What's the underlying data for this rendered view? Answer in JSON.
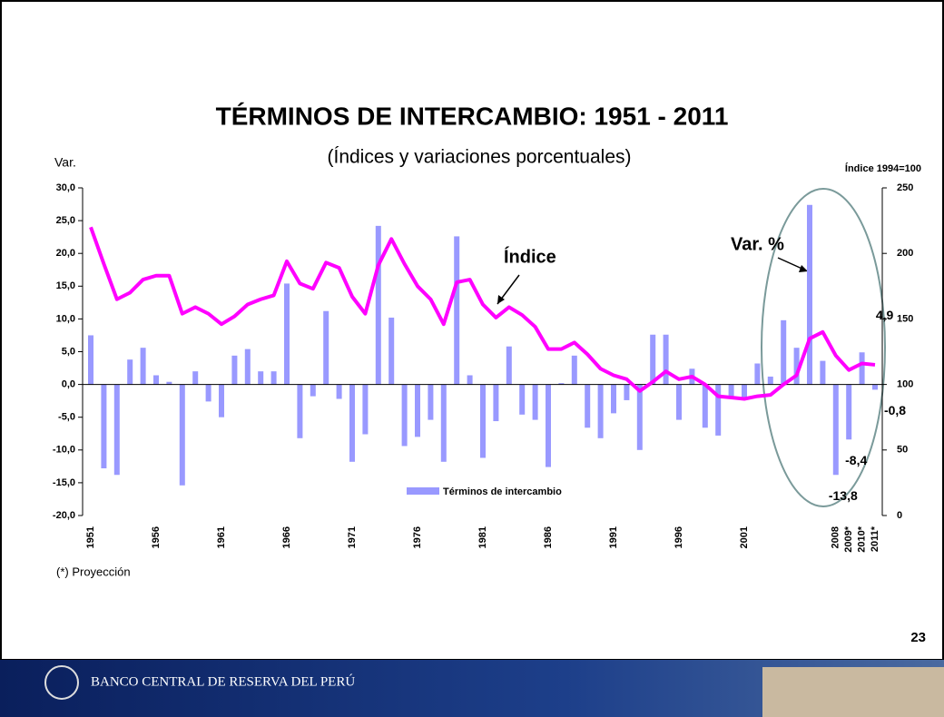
{
  "page": {
    "number": "23",
    "footer": "BANCO CENTRAL DE RESERVA DEL PERÚ",
    "note": "(*) Proyección"
  },
  "chart_data": {
    "type": "bar_line",
    "title": "TÉRMINOS DE INTERCAMBIO: 1951 -  2011",
    "subtitle": "(Índices y variaciones porcentuales)",
    "y_label": "Var.",
    "y2_label": "Índice 1994=100",
    "annotations": [
      "Var. %"
    ],
    "categories": [
      "1951",
      null,
      null,
      null,
      null,
      "1956",
      null,
      null,
      null,
      null,
      "1961",
      null,
      null,
      null,
      null,
      "1966",
      null,
      null,
      null,
      null,
      "1971",
      null,
      null,
      null,
      null,
      "1976",
      null,
      null,
      null,
      null,
      "1981",
      null,
      null,
      null,
      null,
      "1986",
      null,
      null,
      null,
      null,
      "1991",
      null,
      null,
      null,
      null,
      "1996",
      null,
      null,
      null,
      null,
      "2001",
      null,
      null,
      null,
      null,
      null,
      null,
      "2008",
      "2009*",
      "2010*",
      "2011*"
    ],
    "series": [
      {
        "name": "Términos de intercambio",
        "type": "bar",
        "color": "#9999ff",
        "values": [
          7.5,
          -12.8,
          -13.8,
          3.8,
          5.6,
          1.4,
          0.4,
          -15.4,
          2.0,
          -2.6,
          -5.0,
          4.4,
          5.4,
          2.0,
          2.0,
          15.4,
          -8.2,
          -1.8,
          11.2,
          -2.2,
          -11.8,
          -7.6,
          24.2,
          10.2,
          -9.4,
          -8.0,
          -5.4,
          -11.8,
          22.6,
          1.4,
          -11.2,
          -5.6,
          5.8,
          -4.6,
          -5.4,
          -12.6,
          0.2,
          4.4,
          -6.6,
          -8.2,
          -4.4,
          -2.4,
          -10.0,
          7.6,
          7.6,
          -5.4,
          2.4,
          -6.6,
          -7.8,
          -1.8,
          -2.2,
          3.2,
          1.2,
          9.8,
          5.6,
          27.4,
          3.6,
          -13.8,
          -8.4,
          4.9,
          -0.8
        ],
        "value_labels": [
          null,
          null,
          null,
          null,
          null,
          null,
          null,
          null,
          null,
          null,
          null,
          null,
          null,
          null,
          null,
          null,
          null,
          null,
          null,
          null,
          null,
          null,
          null,
          null,
          null,
          null,
          null,
          null,
          null,
          null,
          null,
          null,
          null,
          null,
          null,
          null,
          null,
          null,
          null,
          null,
          null,
          null,
          null,
          null,
          null,
          null,
          null,
          null,
          null,
          null,
          null,
          null,
          null,
          null,
          null,
          null,
          null,
          "-13,8",
          "-8,4",
          "4,9",
          "-0,8"
        ]
      },
      {
        "name": "Índice",
        "type": "line",
        "axis": "y2",
        "color": "#ff00ff",
        "values": [
          220,
          192,
          165,
          170,
          180,
          183,
          183,
          154,
          159,
          154,
          146,
          152,
          161,
          165,
          168,
          194,
          177,
          173,
          193,
          189,
          167,
          154,
          191,
          211,
          192,
          175,
          165,
          146,
          178,
          180,
          161,
          151,
          159,
          153,
          144,
          127,
          127,
          132,
          123,
          112,
          107,
          104,
          95,
          102,
          110,
          104,
          106,
          100,
          91,
          90,
          89,
          91,
          92,
          100,
          107,
          135,
          140,
          122,
          111,
          116,
          115
        ]
      }
    ],
    "ylim": [
      -20,
      30
    ],
    "yticks": [
      {
        "value": -20,
        "label": "-20,0"
      },
      {
        "value": -15,
        "label": "-15,0"
      },
      {
        "value": -10,
        "label": "-10,0"
      },
      {
        "value": -5,
        "label": "-5,0"
      },
      {
        "value": 0,
        "label": "0,0"
      },
      {
        "value": 5,
        "label": "5,0"
      },
      {
        "value": 10,
        "label": "10,0"
      },
      {
        "value": 15,
        "label": "15,0"
      },
      {
        "value": 20,
        "label": "20,0"
      },
      {
        "value": 25,
        "label": "25,0"
      },
      {
        "value": 30,
        "label": "30,0"
      }
    ],
    "y2lim": [
      0,
      250
    ],
    "y2ticks": [
      0,
      50,
      100,
      150,
      200,
      250
    ]
  }
}
